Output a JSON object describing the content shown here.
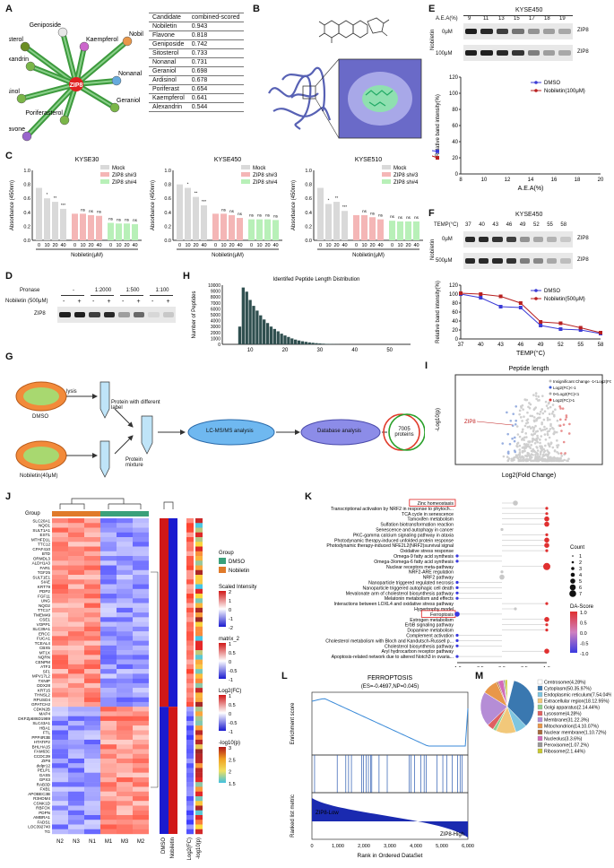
{
  "panels": [
    "A",
    "B",
    "C",
    "D",
    "E",
    "F",
    "G",
    "H",
    "I",
    "J",
    "K",
    "L",
    "M"
  ],
  "network": {
    "center": "ZIP8",
    "nodes": [
      {
        "name": "Geniposide",
        "color": "#e8e8e8"
      },
      {
        "name": "Sitosterol",
        "color": "#6b8e23"
      },
      {
        "name": "Kaempferol",
        "color": "#cc66cc"
      },
      {
        "name": "Nobiletin",
        "color": "#e8974a"
      },
      {
        "name": "Alexandrin",
        "color": "#7ab648"
      },
      {
        "name": "Nonanal",
        "color": "#66aadd"
      },
      {
        "name": "Ardisinol",
        "color": "#7ab648"
      },
      {
        "name": "Geraniol",
        "color": "#7ab648"
      },
      {
        "name": "Poriferasterol",
        "color": "#7ab648"
      },
      {
        "name": "Flavone",
        "color": "#9966cc"
      }
    ]
  },
  "candidates": {
    "headers": [
      "Candidate",
      "combined-scored"
    ],
    "rows": [
      [
        "Nobiletin",
        "0.943"
      ],
      [
        "Flavone",
        "0.818"
      ],
      [
        "Geniposide",
        "0.742"
      ],
      [
        "Sitosterol",
        "0.733"
      ],
      [
        "Nonanal",
        "0.731"
      ],
      [
        "Geraniol",
        "0.698"
      ],
      [
        "Ardisinol",
        "0.678"
      ],
      [
        "Poriferast",
        "0.654"
      ],
      [
        "Kaempferol",
        "0.641"
      ],
      [
        "Alexandrin",
        "0.544"
      ]
    ]
  },
  "panel_c": {
    "titles": [
      "KYSE30",
      "KYSE450",
      "KYSE510"
    ],
    "ylabel": "Absorbance (450nm)",
    "xlabel": "Nobiletin(μM)",
    "legend": [
      "Mock",
      "ZIP8 sh#3",
      "ZIP8 sh#4"
    ],
    "colors": [
      "#d9d9d9",
      "#f4b6b6",
      "#b8f0b8"
    ],
    "ticks": [
      "0",
      "10",
      "20",
      "40"
    ]
  },
  "panel_d": {
    "pronase_label": "Pronase",
    "nobiletin_label": "Nobiletin (500μM)",
    "pronase_levels": [
      "-",
      "1:2000",
      "1:500",
      "1:100"
    ],
    "signs": [
      "-",
      "+",
      "-",
      "+",
      "-",
      "+",
      "-",
      "+"
    ],
    "band": "ZIP8"
  },
  "panel_e": {
    "title": "KYSE450",
    "aea_label": "A.E.A(%)",
    "aea_ticks": [
      "9",
      "11",
      "13",
      "15",
      "17",
      "18",
      "19"
    ],
    "rows": [
      "0μM",
      "100μM"
    ],
    "side": "Nobiletin",
    "band": "ZIP8"
  },
  "panel_f": {
    "title": "KYSE450",
    "temp_label": "TEMP(°C)",
    "temp_ticks": [
      "37",
      "40",
      "43",
      "46",
      "49",
      "52",
      "55",
      "58"
    ],
    "rows": [
      "0μM",
      "500μM"
    ],
    "side": "Nobiletin",
    "band": "ZIP8"
  },
  "panel_g": {
    "dmso": "DMSO",
    "lysis": "lysis",
    "protein_label": "Protein with different label",
    "mixture": "Protein mixture",
    "lcms": "LC-MS/MS analysis",
    "db": "Database analysis",
    "overlap": "7005 proteins",
    "nob": "Nobiletin(40μM)"
  },
  "panel_j_labels": {
    "group": "Group",
    "genes_up": [
      "SLC20A1",
      "NQO1",
      "SULT1A1",
      "EST1",
      "MTHFD1L",
      "TTC12",
      "CPAF410",
      "BTD",
      "ORMDL3",
      "ALDH1A3",
      "FAR1",
      "TGF25",
      "SULT1E1",
      "SIAE",
      "KRT79",
      "PDP2",
      "FGF11",
      "UNG",
      "NQO2",
      "TTC17",
      "TMEM49",
      "CSE1",
      "VOPP1",
      "SLC39A1",
      "ERCC",
      "FUCA1",
      "TCEAL4",
      "CBX5",
      "MT1X",
      "NQRN",
      "CENPM",
      "ATF3",
      "SF1",
      "MPV17L2",
      "TXNIP",
      "DDX28",
      "KRT15",
      "THNSL2",
      "RPUSD4",
      "GPATCH2"
    ],
    "genes_down": [
      "CDKN2B",
      "MAP4",
      "DKFZp686D1989",
      "SLC43A1",
      "HBA1",
      "FTL",
      "PPP4R3B",
      "HTATIP2",
      "BHLHA15",
      "FAM63C",
      "CCDC39",
      "ZIP8",
      "delpr12",
      "PELP1",
      "GAS5",
      "GPX3",
      "RAB3D",
      "FXB1",
      "APOBEC3B",
      "R3HDM4",
      "CSNK1D",
      "RBFOX",
      "PDPN",
      "AMBRA1",
      "FADS1",
      "LOC392740",
      "TG"
    ],
    "samples": [
      "N2",
      "N3",
      "N1",
      "M1",
      "M3",
      "M2"
    ],
    "mid": [
      "DMSO",
      "Nobiletin"
    ],
    "right": [
      "Log2(FC)",
      "-log10(p)"
    ],
    "legend_group": "Group",
    "legend_dmso": "DMSO",
    "legend_nob": "Nobiletin",
    "scaled": "Scaled Intensity",
    "scaled_ticks": [
      "2",
      "1",
      "0",
      "-1",
      "-2"
    ],
    "matrix": "matrix_2",
    "matrix_ticks": [
      "1",
      "0.5",
      "0",
      "-0.5",
      "-1"
    ],
    "logfc": "Log2(FC)",
    "logfc_ticks": [
      "1",
      "0.5",
      "0",
      "-0.5",
      "-1"
    ],
    "logp": "-log10(p)",
    "logp_ticks": [
      "3",
      "2.5",
      "2",
      "1.5"
    ]
  },
  "panel_k": {
    "terms": [
      "Zinc homeostasis",
      "Transcriptional activation by NRF2 in response to phytoch...",
      "TCA cycle in senescence",
      "Tamoxifen metabolism",
      "Sulfation biotransformation reaction",
      "Senescence and autophagy in cancer",
      "PKC-gamma calcium signaling pathway in ataxia",
      "Photodynamic therapy-induced unfolded protein response",
      "Photodynamic therapy-induced NFE2L2(NRF2)survival signal",
      "Oxidative stress response",
      "Omega-9 fatty acid synthesis",
      "Omega-3/omega-6 fatty acid synthesis",
      "Nuclear receptors meta-pathway",
      "NRF2-ARE regulation",
      "NRF2 pathway",
      "Nanoparticle triggered regulated necrosis",
      "Nanoparticle triggered autophagic cell death",
      "Mevalonate arm of cholesterol biosynthesis pathway",
      "Melatonin metabolism and effects",
      "Interactions between LOXL4 and oxidative stress pathway",
      "Hypertrophy model",
      "Ferroptosis",
      "Estrogen metabolism",
      "ErbB signaling pathway",
      "Dopamine metabolism",
      "Complement activation",
      "Cholesterol metabolism with Bloch and Kandutsch-Russell p...",
      "Cholesterol biosynthesis pathway",
      "Aryl hydrocarbon receptor pathway",
      "Apoptosis-related network due to altered Notch3 in ovaria..."
    ],
    "xticks": [
      "-1.0",
      "-0.5",
      "0.0",
      "0.5",
      "1.0"
    ],
    "count_title": "Count",
    "count_ticks": [
      "1",
      "2",
      "3",
      "4",
      "5",
      "6",
      "7"
    ],
    "da_title": "DA-Score",
    "da_ticks": [
      "1.0",
      "0.5",
      "0.0",
      "-0.5",
      "-1.0"
    ]
  },
  "panel_h": {
    "title": "Identifed Peptide Length Distribution",
    "ylabel": "Number of Peptides",
    "yticks": [
      "0",
      "1000",
      "2000",
      "3000",
      "4000",
      "5000",
      "6000",
      "7000",
      "8000",
      "9000",
      "10000"
    ],
    "xticks": [
      "10",
      "20",
      "30",
      "40",
      "50"
    ]
  },
  "panel_i": {
    "title": "Peptide length",
    "ylabel": "-Log10(p)",
    "xlabel": "Log2(Fold Change)",
    "gene": "ZIP8",
    "legend": [
      "Insignificant Change -1<Log2(FC)<0",
      "Log2(FC)<-1",
      "0<Log2(FC)<1",
      "Log2(FC)>1"
    ]
  },
  "panel_l": {
    "title": "FERROPTOSIS",
    "stats": "(ES=-0.4697,NP=0.045)",
    "ylabel1": "Enrichment score",
    "ylabel2": "Ranked list metric",
    "low": "ZIP8-Low",
    "high": "ZIP8-High",
    "xlabel": "Rank in Ordered DataSet",
    "xticks": [
      "0",
      "1,000",
      "2,000",
      "3,000",
      "4,000",
      "5,000",
      "6,000"
    ]
  },
  "panel_m": {
    "items": [
      {
        "label": "Centrosome(4.28%)",
        "color": "#ffffff"
      },
      {
        "label": "Cytoplasm(50.35.97%)",
        "color": "#3a78b0"
      },
      {
        "label": "Endoplasmic reticulum(7.54.04%)",
        "color": "#7fc6e0"
      },
      {
        "label": "Extracellular region(18.12.95%)",
        "color": "#f2c87a"
      },
      {
        "label": "Golgi apparatus(2.14.44%)",
        "color": "#8fd18f"
      },
      {
        "label": "Lysosome(4.28%)",
        "color": "#e06060"
      },
      {
        "label": "Membrane(31.22.3%)",
        "color": "#b58dd6"
      },
      {
        "label": "Mitochondrion(14.10.07%)",
        "color": "#e8974a"
      },
      {
        "label": "Nuclear membrane(1.10.72%)",
        "color": "#a66a3e"
      },
      {
        "label": "Nucleolus(3.3.6%)",
        "color": "#d26bb8"
      },
      {
        "label": "Peroxisome(1.07.2%)",
        "color": "#999999"
      },
      {
        "label": "Ribosome(2.1.44%)",
        "color": "#c8c832"
      }
    ]
  },
  "panel_e_chart": {
    "type": "line",
    "xlabel": "A.E.A(%)",
    "ylabel": "Relative band intensity(%)",
    "legend": [
      "DMSO",
      "Nobiletin(100μM)"
    ],
    "xlim": [
      8,
      20
    ],
    "ylim": [
      0,
      120
    ],
    "xticks": [
      "8",
      "10",
      "12",
      "14",
      "16",
      "18",
      "20"
    ],
    "yticks": [
      "0",
      "20",
      "40",
      "60",
      "80",
      "100",
      "120"
    ]
  },
  "panel_f_chart": {
    "type": "line",
    "xlabel": "TEMP(°C)",
    "ylabel": "Relative band intensity(%)",
    "legend": [
      "DMSO",
      "Nobiletin(500μM)"
    ],
    "yticks": [
      "0",
      "20",
      "40",
      "60",
      "80",
      "100",
      "120"
    ]
  },
  "chart_data": [
    {
      "type": "bar",
      "title": "Identifed Peptide Length Distribution",
      "xlabel": "",
      "ylabel": "Number of Peptides",
      "x": [
        7,
        8,
        9,
        10,
        11,
        12,
        13,
        14,
        15,
        16,
        17,
        18,
        19,
        20,
        21,
        22,
        23,
        24,
        25,
        26,
        27,
        28,
        29,
        30,
        31,
        32,
        33,
        34,
        35
      ],
      "values": [
        3000,
        9600,
        8900,
        7500,
        6500,
        5700,
        4900,
        4200,
        3600,
        3000,
        2600,
        2200,
        1800,
        1500,
        1250,
        1000,
        800,
        650,
        520,
        420,
        330,
        260,
        200,
        150,
        110,
        80,
        60,
        40,
        30
      ],
      "ylim": [
        0,
        10000
      ]
    },
    {
      "type": "line",
      "xlabel": "A.E.A(%)",
      "ylabel": "Relative band intensity(%)",
      "series": [
        {
          "name": "DMSO",
          "x": [
            9,
            11,
            13,
            15,
            17,
            18,
            19
          ],
          "values": [
            100,
            95,
            80,
            40,
            32,
            30,
            28
          ]
        },
        {
          "name": "Nobiletin(100μM)",
          "x": [
            9,
            11,
            13,
            15,
            17,
            18,
            19
          ],
          "values": [
            102,
            100,
            98,
            85,
            40,
            25,
            20
          ]
        }
      ],
      "xlim": [
        8,
        20
      ],
      "ylim": [
        0,
        120
      ]
    },
    {
      "type": "line",
      "xlabel": "TEMP(°C)",
      "ylabel": "Relative band intensity(%)",
      "categories": [
        "37",
        "40",
        "43",
        "46",
        "49",
        "52",
        "55",
        "58"
      ],
      "series": [
        {
          "name": "DMSO",
          "values": [
            100,
            92,
            72,
            70,
            30,
            22,
            20,
            12
          ]
        },
        {
          "name": "Nobiletin(500μM)",
          "values": [
            102,
            100,
            95,
            80,
            38,
            35,
            25,
            14
          ]
        }
      ],
      "ylim": [
        0,
        120
      ]
    },
    {
      "type": "pie",
      "categories": [
        "Centrosome",
        "Cytoplasm",
        "Endoplasmic reticulum",
        "Extracellular region",
        "Golgi apparatus",
        "Lysosome",
        "Membrane",
        "Mitochondrion",
        "Nuclear membrane",
        "Nucleolus",
        "Peroxisome",
        "Ribosome"
      ],
      "values": [
        4.28,
        35.97,
        7.54,
        12.95,
        2.14,
        4.28,
        22.3,
        10.07,
        1.0,
        3.6,
        1.07,
        1.44
      ]
    }
  ]
}
